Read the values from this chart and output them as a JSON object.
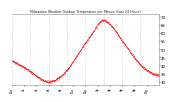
{
  "title": "Milwaukee Weather Outdoor Temperature per Minute (Last 24 Hours)",
  "line_color": "#ff0000",
  "background_color": "#ffffff",
  "grid_color": "#bbbbbb",
  "ylim": [
    28,
    72
  ],
  "ytick_values": [
    30,
    35,
    40,
    45,
    50,
    55,
    60,
    65,
    70
  ],
  "ytick_labels": [
    "30",
    "35",
    "40",
    "45",
    "50",
    "55",
    "60",
    "65",
    "70"
  ],
  "num_points": 1440,
  "control_points": [
    [
      0.0,
      43
    ],
    [
      0.04,
      41
    ],
    [
      0.1,
      38
    ],
    [
      0.16,
      34
    ],
    [
      0.21,
      31
    ],
    [
      0.25,
      30
    ],
    [
      0.29,
      31
    ],
    [
      0.34,
      34
    ],
    [
      0.39,
      39
    ],
    [
      0.44,
      46
    ],
    [
      0.49,
      53
    ],
    [
      0.53,
      58
    ],
    [
      0.56,
      62
    ],
    [
      0.58,
      65
    ],
    [
      0.6,
      67
    ],
    [
      0.615,
      68
    ],
    [
      0.63,
      68
    ],
    [
      0.645,
      67
    ],
    [
      0.66,
      66
    ],
    [
      0.68,
      64
    ],
    [
      0.7,
      62
    ],
    [
      0.73,
      58
    ],
    [
      0.76,
      54
    ],
    [
      0.8,
      49
    ],
    [
      0.84,
      44
    ],
    [
      0.88,
      40
    ],
    [
      0.92,
      37
    ],
    [
      0.96,
      35
    ],
    [
      1.0,
      34
    ]
  ],
  "noise_std": 0.35,
  "noise_seed": 7,
  "grid_hours": [
    0,
    3,
    6,
    9,
    12,
    15,
    18,
    21,
    24
  ],
  "xtick_hours": [
    0,
    2,
    4,
    6,
    8,
    10,
    12,
    14,
    16,
    18,
    20,
    22,
    24
  ],
  "xtick_labels": [
    "12a",
    "2a",
    "4a",
    "6a",
    "8a",
    "10a",
    "12p",
    "2p",
    "4p",
    "6p",
    "8p",
    "10p",
    "12a"
  ]
}
